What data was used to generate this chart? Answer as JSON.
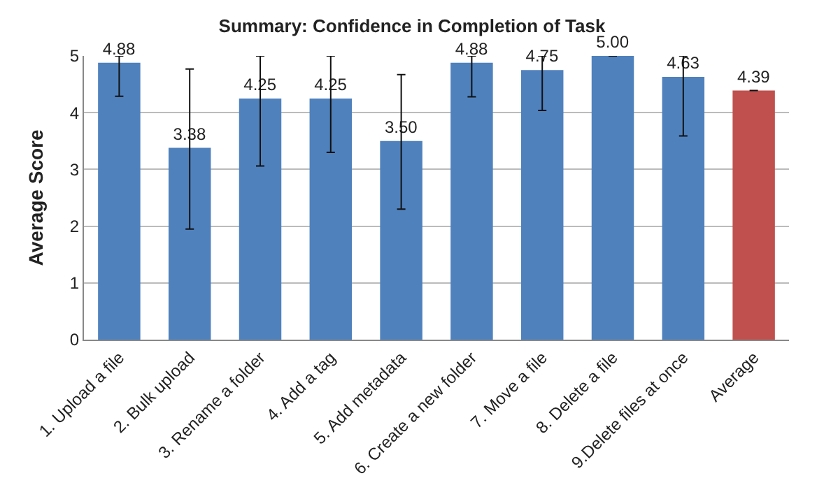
{
  "chart_data": {
    "type": "bar",
    "title": "Summary: Confidence in Completion of Task",
    "ylabel": "Average Score",
    "categories": [
      "1. Upload a file",
      "2. Bulk upload",
      "3. Rename a folder",
      "4. Add a tag",
      "5. Add metadata",
      "6. Create a new folder",
      "7. Move a file",
      "8. Delete a file",
      "9.Delete files at once",
      "Average"
    ],
    "values": [
      4.88,
      3.38,
      4.25,
      4.25,
      3.5,
      4.88,
      4.75,
      5.0,
      4.63,
      4.39
    ],
    "colors": [
      "#4f81bd",
      "#4f81bd",
      "#4f81bd",
      "#4f81bd",
      "#4f81bd",
      "#4f81bd",
      "#4f81bd",
      "#4f81bd",
      "#4f81bd",
      "#c0504d"
    ],
    "errors": [
      [
        4.29,
        5
      ],
      [
        1.95,
        4.77
      ],
      [
        3.06,
        5
      ],
      [
        3.3,
        5
      ],
      [
        2.3,
        4.67
      ],
      [
        4.28,
        5
      ],
      [
        4.04,
        5
      ],
      0,
      [
        3.59,
        5
      ],
      null
    ],
    "ylim": [
      0,
      5
    ],
    "yticks": [
      0,
      1,
      2,
      3,
      4,
      5
    ],
    "grid": "y",
    "value_labels": [
      "4.88",
      "3.38",
      "4.25",
      "4.25",
      "3.50",
      "4.88",
      "4.75",
      "5.00",
      "4.63",
      "4.39"
    ]
  }
}
